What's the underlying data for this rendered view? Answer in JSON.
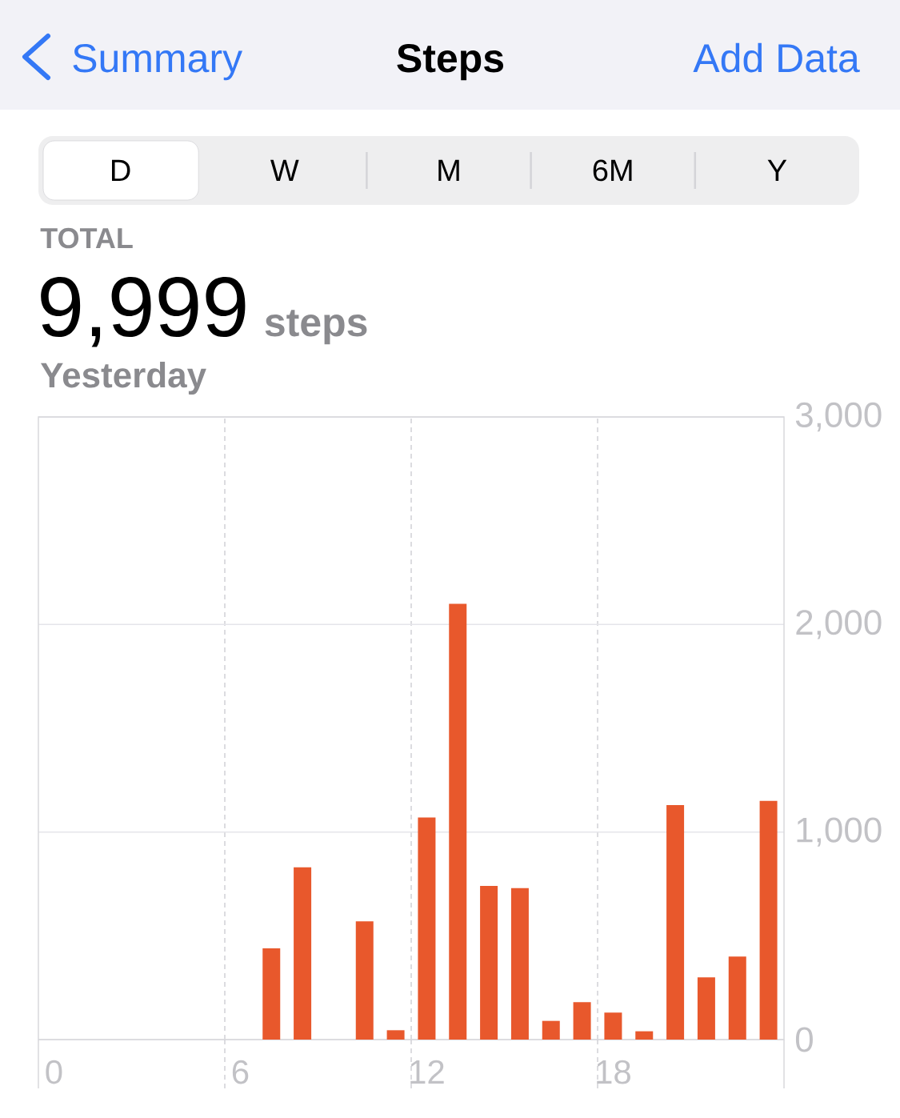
{
  "chart_data": {
    "type": "bar",
    "title": "Steps",
    "categories": [
      "0",
      null,
      null,
      null,
      null,
      null,
      "6",
      null,
      null,
      null,
      null,
      null,
      "12",
      null,
      null,
      null,
      null,
      null,
      "18",
      null,
      null,
      null,
      null,
      null
    ],
    "values": [
      null,
      null,
      null,
      null,
      null,
      null,
      null,
      440,
      830,
      null,
      570,
      45,
      1070,
      2100,
      740,
      730,
      90,
      180,
      130,
      40,
      1130,
      300,
      400,
      1150
    ],
    "color": "#e8582c",
    "ylim": [
      0,
      3000
    ],
    "yticks": [
      0,
      {
        "value": 1000,
        "label": "1,000"
      },
      {
        "value": 2000,
        "label": "2,000"
      },
      {
        "value": 3000,
        "label": "3,000"
      }
    ],
    "grid": true,
    "annotations": [
      "Summary",
      "Add Data",
      "D",
      "W",
      "M",
      "6M",
      "Y",
      "TOTAL",
      "9,999",
      "steps",
      "Yesterday"
    ]
  }
}
